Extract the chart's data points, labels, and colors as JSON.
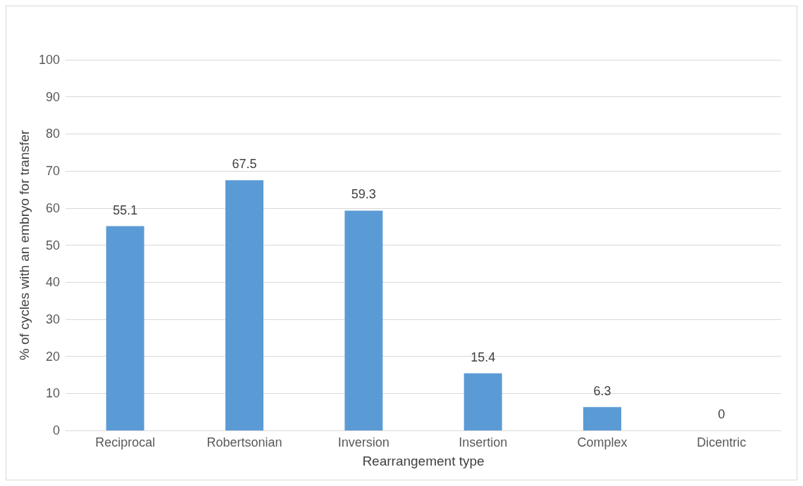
{
  "chart_data": {
    "type": "bar",
    "xlabel": "Rearrangement type",
    "ylabel": "% of cycles with an embryo for transfer",
    "categories": [
      "Reciprocal",
      "Robertsonian",
      "Inversion",
      "Insertion",
      "Complex",
      "Dicentric"
    ],
    "values": [
      55.1,
      67.5,
      59.3,
      15.4,
      6.3,
      0
    ],
    "color": "#5b9bd5",
    "ylim": [
      0,
      100
    ],
    "yticks": [
      0,
      10,
      20,
      30,
      40,
      50,
      60,
      70,
      80,
      90,
      100
    ],
    "grid": "y",
    "data_labels": true
  }
}
